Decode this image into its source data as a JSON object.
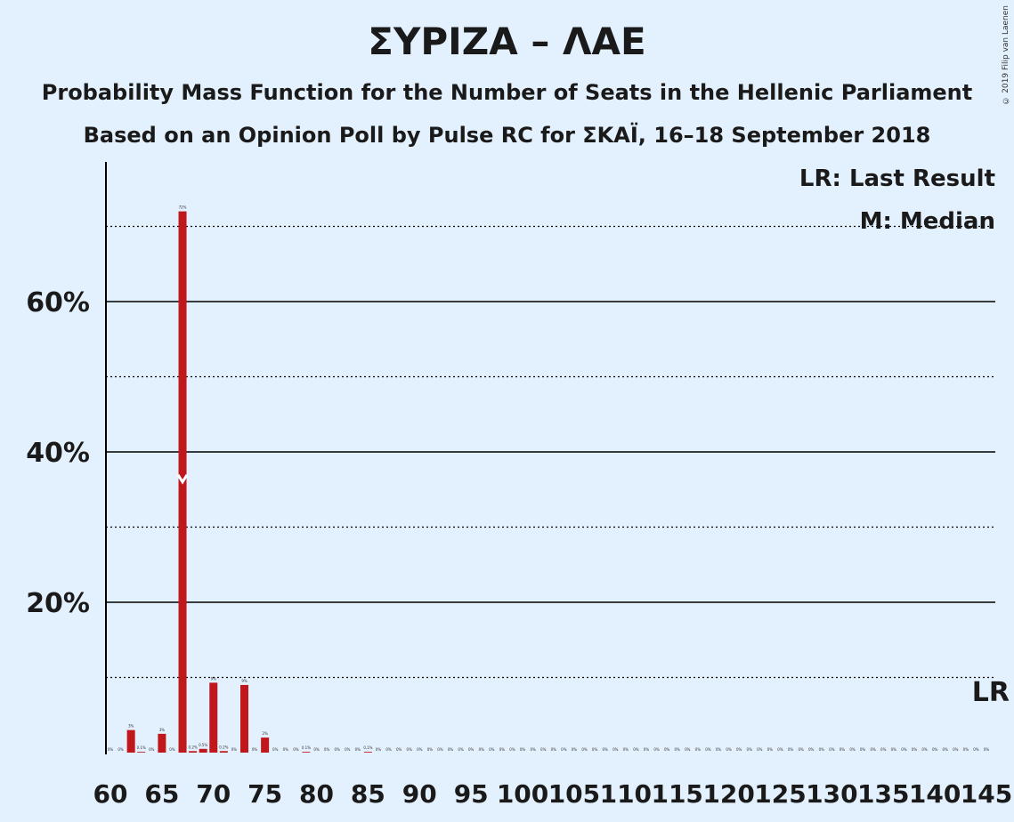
{
  "title": "ΣΥΡΙΖΑ – ΛΑΕ",
  "subtitle1": "Probability Mass Function for the Number of Seats in the Hellenic Parliament",
  "subtitle2": "Based on an Opinion Poll by Pulse RC for ΣΚΑΪ, 16–18 September 2018",
  "copyright": "© 2019 Filip van Laenen",
  "legend": {
    "last_result": "LR: Last Result",
    "median": "M: Median",
    "lr_marker": "LR"
  },
  "colors": {
    "background": "#e3f0fd",
    "bar": "#c0171c",
    "bar_light": "#d6343a",
    "median_marker": "#ffffff"
  },
  "chart_data": {
    "type": "bar",
    "x": [
      60,
      61,
      62,
      63,
      64,
      65,
      66,
      67,
      68,
      69,
      70,
      71,
      72,
      73,
      74,
      75,
      76,
      77,
      78,
      79,
      80,
      81,
      82,
      83,
      84,
      85,
      86,
      87,
      88,
      89,
      90,
      91,
      92,
      93,
      94,
      95,
      96,
      97,
      98,
      99,
      100,
      101,
      102,
      103,
      104,
      105,
      106,
      107,
      108,
      109,
      110,
      111,
      112,
      113,
      114,
      115,
      116,
      117,
      118,
      119,
      120,
      121,
      122,
      123,
      124,
      125,
      126,
      127,
      128,
      129,
      130,
      131,
      132,
      133,
      134,
      135,
      136,
      137,
      138,
      139,
      140,
      141,
      142,
      143,
      144,
      145
    ],
    "values": [
      0,
      0,
      3,
      0.1,
      0,
      2.5,
      0,
      72,
      0.2,
      0.5,
      9.3,
      0.2,
      0,
      9,
      0,
      2,
      0,
      0,
      0,
      0.1,
      0,
      0,
      0,
      0,
      0,
      0.1,
      0,
      0,
      0,
      0,
      0,
      0,
      0,
      0,
      0,
      0,
      0,
      0,
      0,
      0,
      0,
      0,
      0,
      0,
      0,
      0,
      0,
      0,
      0,
      0,
      0,
      0,
      0,
      0,
      0,
      0,
      0,
      0,
      0,
      0,
      0,
      0,
      0,
      0,
      0,
      0,
      0,
      0,
      0,
      0,
      0,
      0,
      0,
      0,
      0,
      0,
      0,
      0,
      0,
      0,
      0,
      0,
      0,
      0,
      0,
      0
    ],
    "value_labels": [
      "0%",
      "0%",
      "3%",
      "0.1%",
      "0%",
      "3%",
      "0%",
      "72%",
      "0.2%",
      "0.5%",
      "9%",
      "0.2%",
      "0%",
      "9%",
      "0%",
      "2%",
      "0%",
      "0%",
      "0%",
      "0.1%",
      "0%",
      "0%",
      "0%",
      "0%",
      "0%",
      "0.1%",
      "0%",
      "0%",
      "0%",
      "0%",
      "0%",
      "0%",
      "0%",
      "0%",
      "0%",
      "0%",
      "0%",
      "0%",
      "0%",
      "0%",
      "0%",
      "0%",
      "0%",
      "0%",
      "0%",
      "0%",
      "0%",
      "0%",
      "0%",
      "0%",
      "0%",
      "0%",
      "0%",
      "0%",
      "0%",
      "0%",
      "0%",
      "0%",
      "0%",
      "0%",
      "0%",
      "0%",
      "0%",
      "0%",
      "0%",
      "0%",
      "0%",
      "0%",
      "0%",
      "0%",
      "0%",
      "0%",
      "0%",
      "0%",
      "0%",
      "0%",
      "0%",
      "0%",
      "0%",
      "0%",
      "0%",
      "0%",
      "0%",
      "0%",
      "0%",
      "0%"
    ],
    "x_tick_labels": [
      "60",
      "65",
      "70",
      "75",
      "80",
      "85",
      "90",
      "95",
      "100",
      "105",
      "110",
      "115",
      "120",
      "125",
      "130",
      "135",
      "140",
      "145"
    ],
    "y_tick_labels": [
      "20%",
      "40%",
      "60%"
    ],
    "y_ticks": [
      20,
      40,
      60
    ],
    "y_minor_gridlines": [
      10,
      30,
      50,
      70
    ],
    "ylim": [
      0,
      78
    ],
    "xlim": [
      60,
      145
    ],
    "median": 67,
    "last_result": 145,
    "grid": true,
    "legend_position": "top-right"
  }
}
